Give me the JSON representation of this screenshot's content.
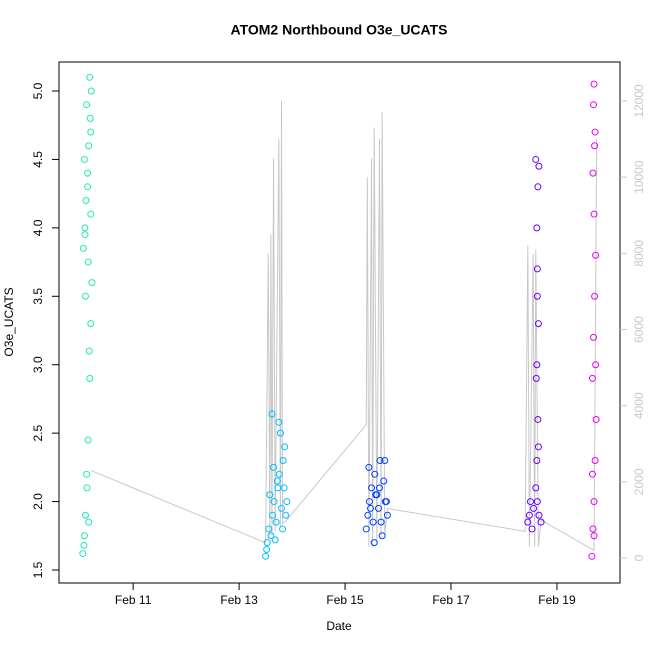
{
  "chart_data": {
    "type": "scatter",
    "title": "ATOM2 Northbound O3e_UCATS",
    "xlabel": "Date",
    "ylabel": "O3e_UCATS",
    "xlim": [
      9.6,
      20.19
    ],
    "xticks": [
      {
        "value": 11,
        "label": "Feb 11"
      },
      {
        "value": 13,
        "label": "Feb 13"
      },
      {
        "value": 15,
        "label": "Feb 15"
      },
      {
        "value": 17,
        "label": "Feb 17"
      },
      {
        "value": 19,
        "label": "Feb 19"
      }
    ],
    "ylim": [
      1.405,
      5.212
    ],
    "yticks": [
      1.5,
      {
        "value": 2,
        "label": "2.0"
      },
      2.5,
      {
        "value": 3,
        "label": "3.0"
      },
      3.5,
      {
        "value": 4,
        "label": "4.0"
      },
      4.5,
      {
        "value": 5,
        "label": "5.0"
      }
    ],
    "y2lim": [
      -656,
      13024
    ],
    "y2ticks": [
      0,
      2000,
      4000,
      6000,
      8000,
      10000,
      12000
    ],
    "y2color": "#c8c8c8",
    "series": [
      {
        "color": "#1de9b6",
        "x": [
          10.05,
          10.08,
          10.1,
          10.12,
          10.15,
          10.18,
          10.2,
          10.22,
          10.06,
          10.09,
          10.11,
          10.14,
          10.16,
          10.19,
          10.21,
          10.07,
          10.13,
          10.17,
          10.1,
          10.15,
          10.2,
          10.08,
          10.12,
          10.18,
          10.16,
          10.09,
          10.14,
          10.2
        ],
        "values": [
          1.62,
          1.75,
          1.9,
          2.2,
          2.45,
          2.9,
          3.3,
          3.6,
          3.85,
          4.0,
          4.2,
          4.4,
          4.6,
          4.8,
          5.0,
          1.68,
          2.1,
          3.1,
          3.5,
          3.75,
          4.1,
          4.5,
          4.9,
          5.1,
          1.85,
          3.95,
          4.3,
          4.7
        ]
      },
      {
        "color": "#00bfff",
        "x": [
          13.5,
          13.53,
          13.56,
          13.6,
          13.63,
          13.66,
          13.7,
          13.73,
          13.76,
          13.8,
          13.83,
          13.86,
          13.9,
          13.52,
          13.58,
          13.62,
          13.68,
          13.72,
          13.78,
          13.82,
          13.88,
          13.65,
          13.75,
          13.85
        ],
        "values": [
          1.6,
          1.7,
          1.8,
          1.75,
          1.9,
          2.0,
          1.85,
          2.1,
          2.2,
          1.95,
          2.3,
          2.4,
          2.0,
          1.65,
          2.05,
          2.64,
          1.72,
          2.15,
          2.5,
          1.8,
          1.9,
          2.25,
          2.58,
          2.1
        ]
      },
      {
        "color": "#0040ff",
        "x": [
          15.4,
          15.43,
          15.46,
          15.5,
          15.53,
          15.56,
          15.6,
          15.63,
          15.66,
          15.7,
          15.73,
          15.76,
          15.8,
          15.45,
          15.55,
          15.65,
          15.75,
          15.48,
          15.58,
          15.68,
          15.78
        ],
        "values": [
          1.8,
          1.9,
          2.0,
          2.1,
          1.85,
          2.2,
          2.05,
          1.95,
          2.3,
          1.75,
          2.15,
          2.0,
          1.9,
          2.25,
          1.7,
          2.1,
          2.3,
          1.95,
          2.05,
          1.85,
          2.0
        ]
      },
      {
        "color": "#6a00ff",
        "x": [
          18.45,
          18.48,
          18.5,
          18.53,
          18.56,
          18.6,
          18.63,
          18.66,
          18.7,
          18.62,
          18.64,
          18.61,
          18.65,
          18.63,
          18.62,
          18.64,
          18.6,
          18.66,
          18.63,
          18.65,
          18.62
        ],
        "values": [
          1.85,
          1.9,
          2.0,
          1.8,
          1.95,
          2.1,
          2.0,
          1.9,
          1.85,
          2.3,
          2.6,
          2.9,
          3.3,
          3.7,
          4.0,
          4.3,
          4.5,
          4.45,
          3.5,
          2.4,
          3.0
        ]
      },
      {
        "color": "#e600ff",
        "x": [
          19.66,
          19.68,
          19.7,
          19.72,
          19.74,
          19.67,
          19.69,
          19.71,
          19.73,
          19.7,
          19.68,
          19.72,
          19.7,
          19.69,
          19.71,
          19.73,
          19.67,
          19.7
        ],
        "values": [
          1.6,
          1.8,
          2.0,
          2.3,
          2.6,
          2.9,
          3.2,
          3.5,
          3.8,
          4.1,
          4.4,
          4.7,
          5.05,
          4.9,
          4.6,
          3.0,
          2.2,
          1.75
        ]
      },
      {
        "color": "#c8c8c8",
        "axis": "y2",
        "x": [
          10.2,
          13.5,
          13.55,
          13.58,
          13.6,
          13.62,
          13.65,
          13.68,
          13.75,
          13.78,
          13.8,
          13.82,
          13.9,
          15.4,
          15.42,
          15.45,
          15.5,
          15.52,
          15.55,
          15.6,
          15.65,
          15.68,
          15.7,
          15.75,
          15.8,
          18.4,
          18.45,
          18.48,
          18.55,
          18.58,
          18.6,
          18.65,
          18.7,
          19.7,
          19.75
        ],
        "values": [
          2300,
          400,
          8000,
          500,
          8500,
          600,
          10500,
          700,
          11000,
          800,
          12000,
          900,
          1000,
          3500,
          10000,
          300,
          10500,
          300,
          11300,
          400,
          11000,
          500,
          11700,
          600,
          1300,
          700,
          8200,
          300,
          8000,
          300,
          8100,
          300,
          1000,
          200,
          11000
        ]
      }
    ]
  }
}
